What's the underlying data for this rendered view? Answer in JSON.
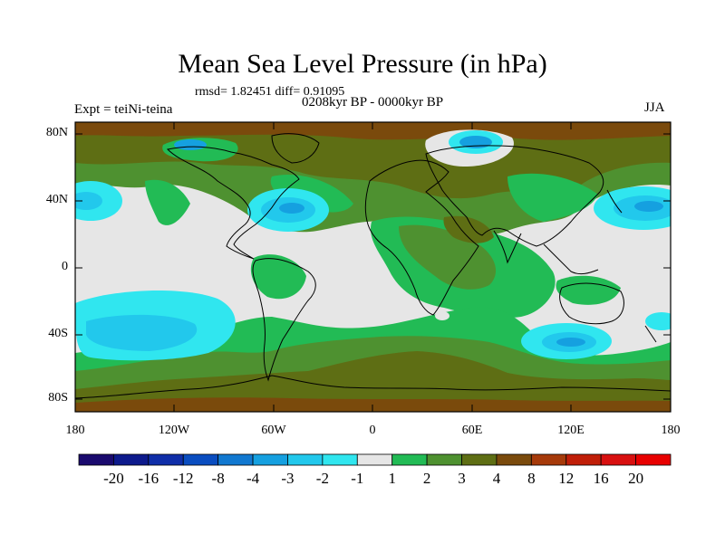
{
  "title": "Mean Sea Level Pressure (in hPa)",
  "stats_line": "rmsd= 1.82451 diff= 0.91095",
  "period_line": "0208kyr BP - 0000kyr BP",
  "experiment_label": "Expt = teiNi-teina",
  "season_label": "JJA",
  "lat_labels": [
    "80N",
    "40N",
    "0",
    "40S",
    "80S"
  ],
  "lon_labels": [
    "180",
    "120W",
    "60W",
    "0",
    "60E",
    "120E",
    "180"
  ],
  "colorbar": {
    "labels": [
      "-20",
      "-16",
      "-12",
      "-8",
      "-4",
      "-3",
      "-2",
      "-1",
      "1",
      "2",
      "3",
      "4",
      "8",
      "12",
      "16",
      "20"
    ],
    "colors": [
      "#1a0a6e",
      "#0d1a8c",
      "#0f2ea8",
      "#0a4dc0",
      "#1178d0",
      "#15a0e0",
      "#22c8ec",
      "#30e6ef",
      "#e6e6e6",
      "#22bb55",
      "#4e9130",
      "#5e6e14",
      "#7a4a0c",
      "#a63a0a",
      "#c01e08",
      "#d81010",
      "#e80000"
    ]
  },
  "map_colors": {
    "ocean_white": "#e6e6e6",
    "green": "#22bb55",
    "olive": "#4e9130",
    "brown": "#5e6e14",
    "darkbrown": "#7a4a0c",
    "cyan": "#30e6ef",
    "lightblue": "#22c8ec",
    "blue": "#15a0e0"
  }
}
